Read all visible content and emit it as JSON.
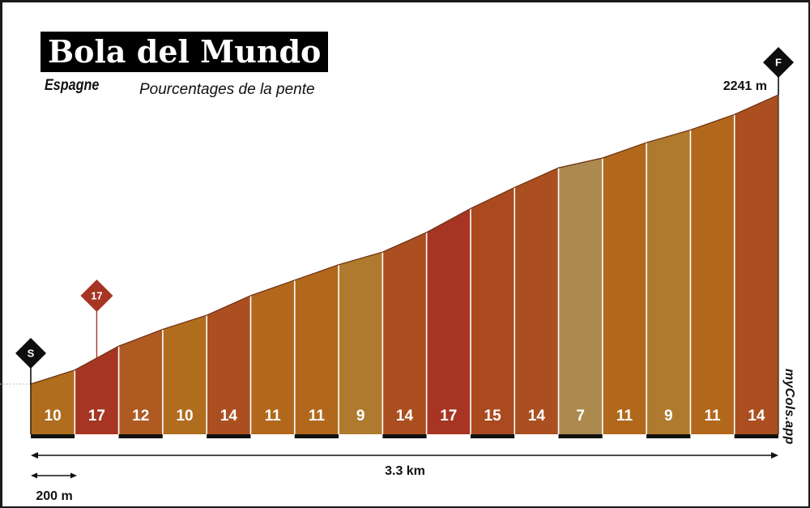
{
  "header": {
    "title": "Bola del Mundo",
    "subtitle": "Espagne",
    "caption": "Pourcentages de la pente"
  },
  "watermark": "myCols.app",
  "chart_data": {
    "type": "area",
    "title": "Bola del Mundo",
    "segment_length_m": 200,
    "total_distance_label": "3.3 km",
    "scale_label": "200 m",
    "summit_altitude_label": "2241 m",
    "summit_altitude_m": 2241,
    "start_marker": "S",
    "finish_marker": "F",
    "max_gradient_marker": {
      "label": "17",
      "segment_index": 1
    },
    "segments": [
      {
        "gradient": 10,
        "label": "10",
        "color": "#b06d1d"
      },
      {
        "gradient": 17,
        "label": "17",
        "color": "#a63524"
      },
      {
        "gradient": 12,
        "label": "12",
        "color": "#ae5a21"
      },
      {
        "gradient": 10,
        "label": "10",
        "color": "#b06d1d"
      },
      {
        "gradient": 14,
        "label": "14",
        "color": "#ab4f20"
      },
      {
        "gradient": 11,
        "label": "11",
        "color": "#b2681c"
      },
      {
        "gradient": 11,
        "label": "11",
        "color": "#b2681c"
      },
      {
        "gradient": 9,
        "label": "9",
        "color": "#b07a2e"
      },
      {
        "gradient": 14,
        "label": "14",
        "color": "#ab4f20"
      },
      {
        "gradient": 17,
        "label": "17",
        "color": "#a63524"
      },
      {
        "gradient": 15,
        "label": "15",
        "color": "#ab4a20"
      },
      {
        "gradient": 14,
        "label": "14",
        "color": "#ab4f20"
      },
      {
        "gradient": 7,
        "label": "7",
        "color": "#ac8a4f"
      },
      {
        "gradient": 11,
        "label": "11",
        "color": "#b2681c"
      },
      {
        "gradient": 9,
        "label": "9",
        "color": "#b07a2e"
      },
      {
        "gradient": 11,
        "label": "11",
        "color": "#b2681c"
      },
      {
        "gradient": 14,
        "label": "14",
        "color": "#ab4f20"
      }
    ]
  }
}
